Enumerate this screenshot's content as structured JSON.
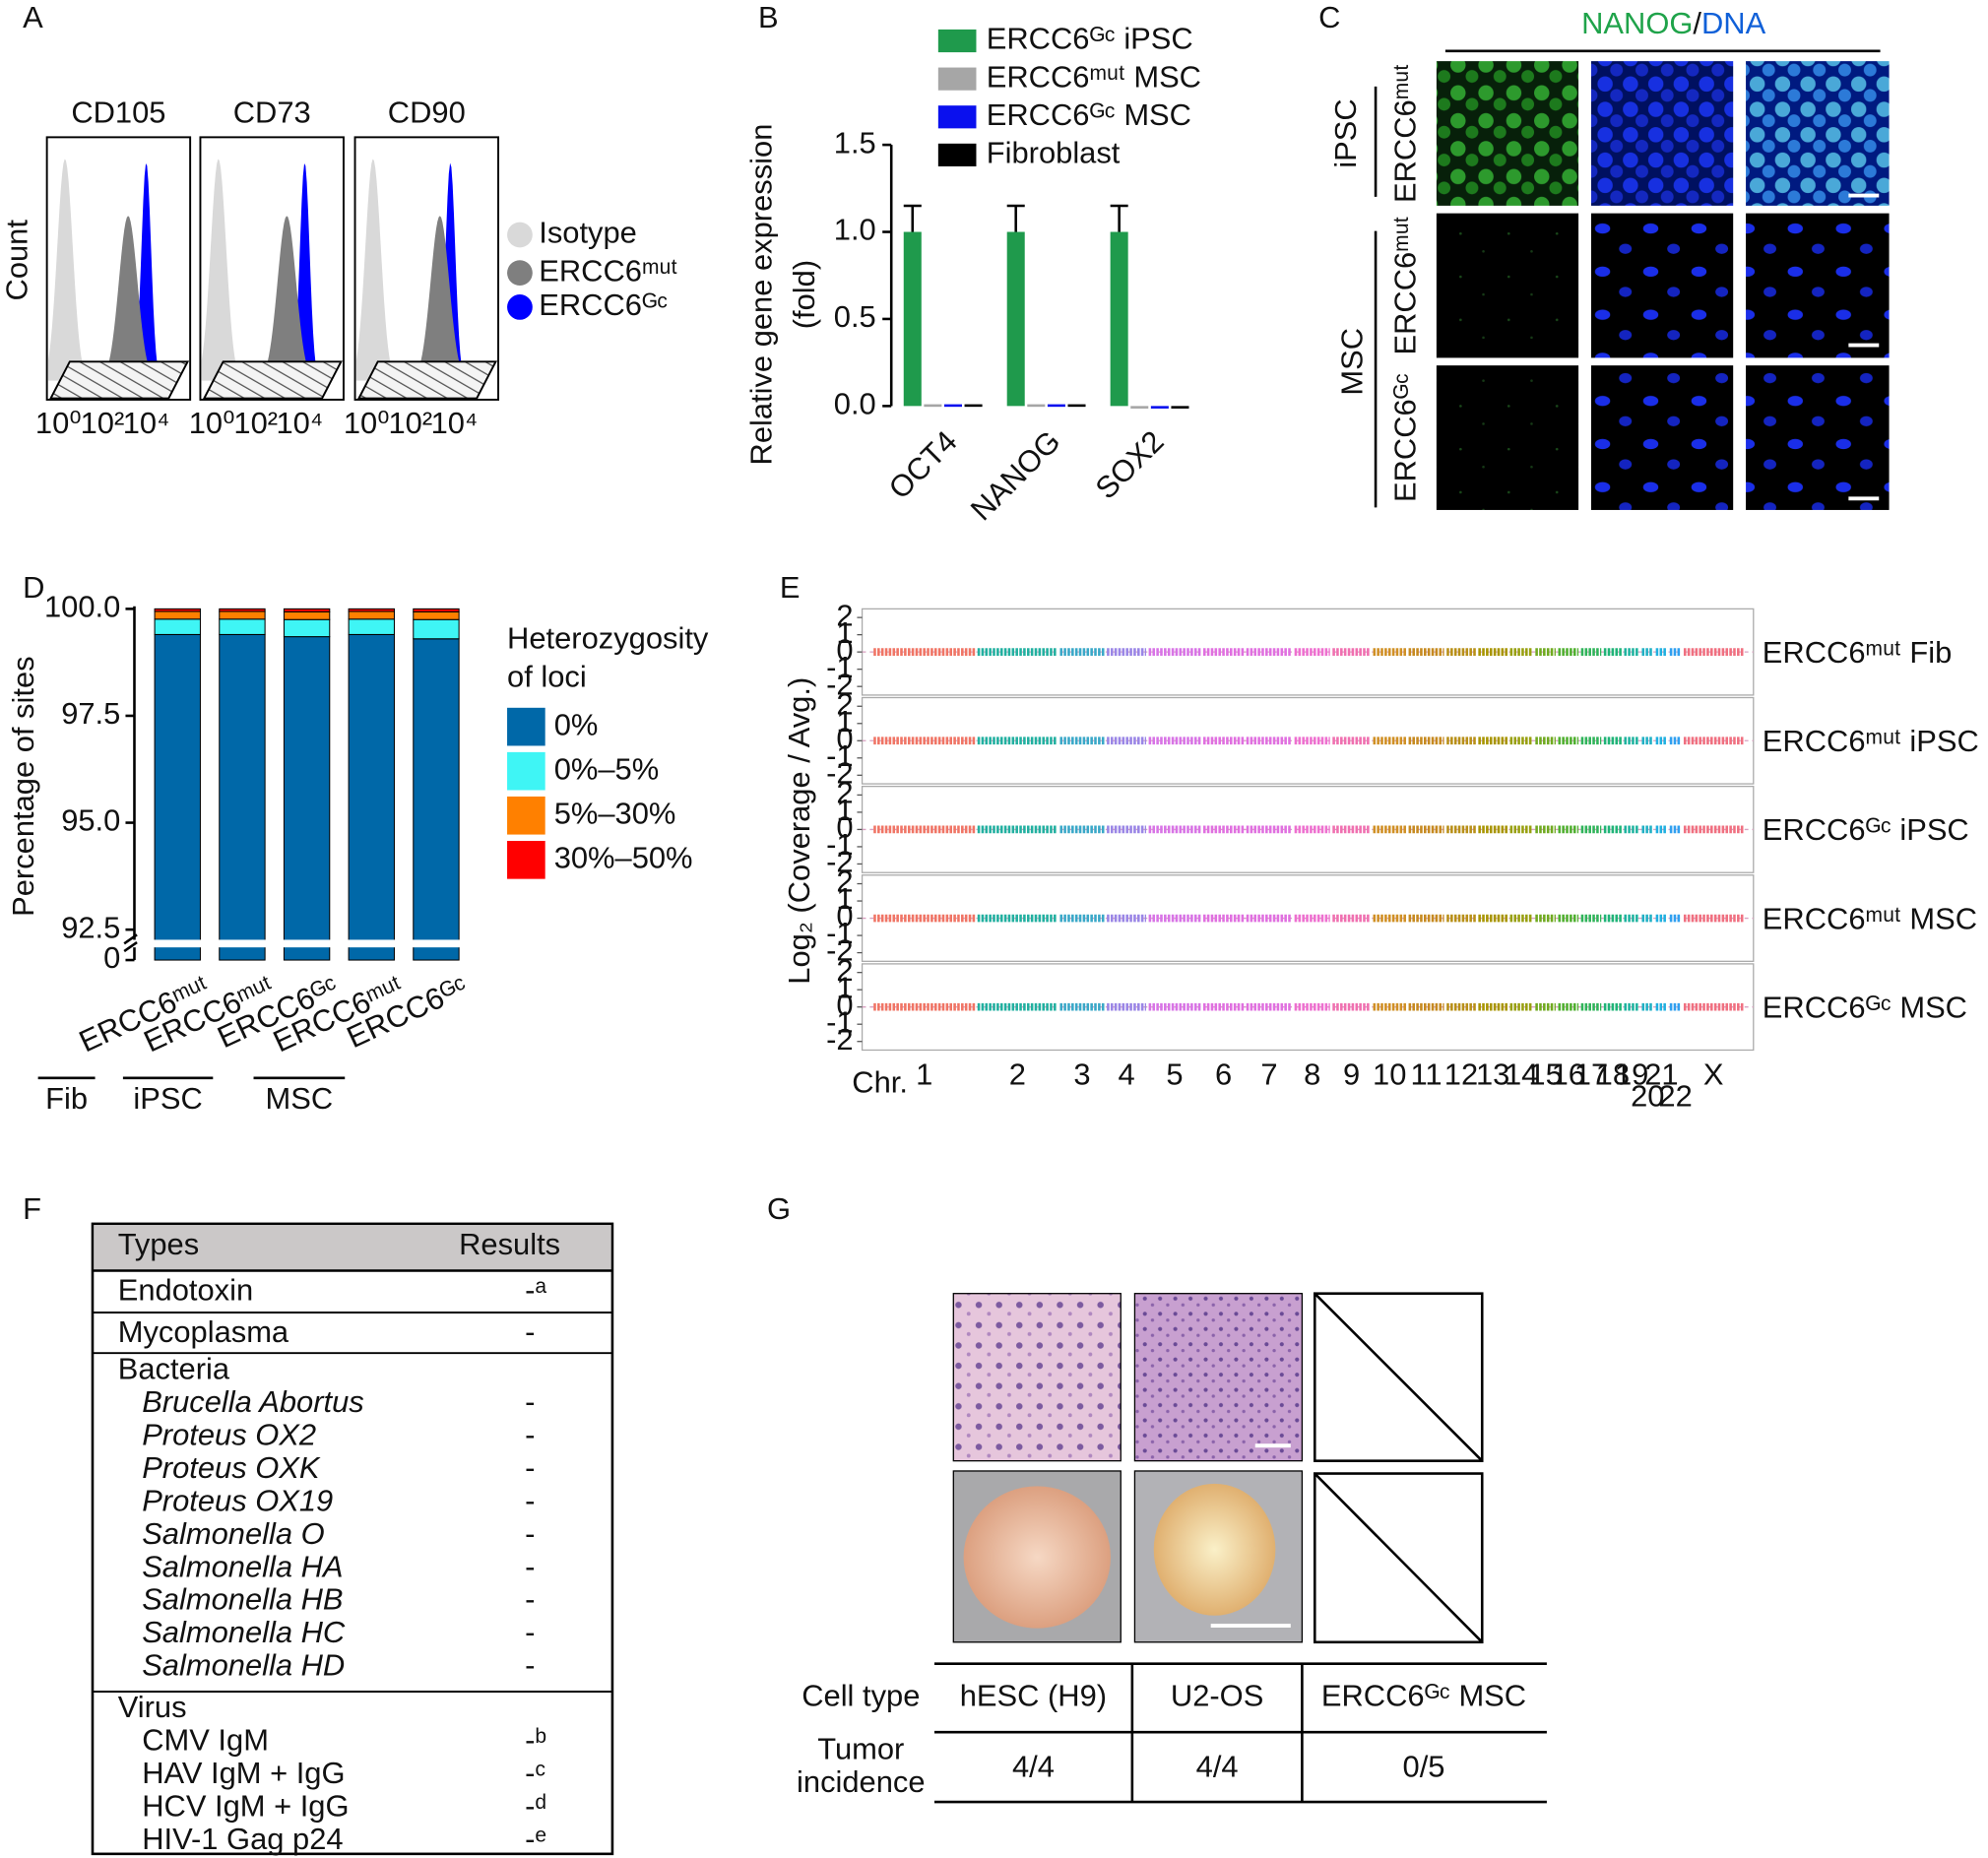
{
  "figure": {
    "panel_labels": [
      "A",
      "B",
      "C",
      "D",
      "E",
      "F",
      "G"
    ]
  },
  "chart_data": [
    {
      "type": "flow-cytometry",
      "ylabel": "Count",
      "panels": [
        "CD105",
        "CD73",
        "CD90"
      ],
      "xscale": "log",
      "xlim": [
        0.3,
        1000000
      ],
      "xticks": [
        {
          "value": 1,
          "label": "10⁰"
        },
        {
          "value": 100,
          "label": "10²"
        },
        {
          "value": 10000,
          "label": "10⁴"
        }
      ],
      "series": [
        {
          "name": "Isotype",
          "color": "#d9d9d9",
          "values": [
            2,
            2,
            2
          ]
        },
        {
          "name": "ERCC6ᵐᵘᵗ",
          "color": "#7f7f7f",
          "values": [
            1500,
            2600,
            2200
          ]
        },
        {
          "name": "ERCC6ᴳᶜ",
          "color": "#0000ff",
          "values": [
            10000,
            17000,
            6600
          ]
        }
      ]
    },
    {
      "type": "bar",
      "ylabel": [
        "Relative gene expression",
        "(fold)"
      ],
      "categories": [
        "OCT4",
        "NANOG",
        "SOX2"
      ],
      "ylim": [
        0,
        1.5
      ],
      "yticks": [
        {
          "value": 0,
          "label": "0.0"
        },
        0.5,
        {
          "value": 1,
          "label": "1.0"
        },
        1.5
      ],
      "series": [
        {
          "name": "ERCC6ᴳᶜ iPSC",
          "color": "#1f9a4c",
          "values": [
            1,
            1,
            1
          ],
          "errors": [
            0.15,
            0.15,
            0.15
          ]
        },
        {
          "name": "ERCC6ᵐᵘᵗ MSC",
          "color": "#a6a6a6",
          "values": [
            0.01,
            0.01,
            0
          ]
        },
        {
          "name": "ERCC6ᴳᶜ MSC",
          "color": "#0a10ee",
          "values": [
            0.01,
            0.01,
            0
          ]
        },
        {
          "name": "Fibroblast",
          "color": "#000000",
          "values": [
            0.01,
            0.01,
            0
          ]
        }
      ]
    },
    {
      "type": "stacked-bar",
      "ylabel": "Percentage of sites",
      "legend_title": [
        "Heterozygosity",
        "of loci"
      ],
      "categories": [
        "ERCC6ᵐᵘᵗ",
        "ERCC6ᵐᵘᵗ",
        "ERCC6ᴳᶜ",
        "ERCC6ᵐᵘᵗ",
        "ERCC6ᴳᶜ"
      ],
      "groups": [
        "Fib",
        "iPSC",
        "MSC"
      ],
      "ylim": [
        0,
        100
      ],
      "ybreak": 92.5,
      "yticks": [
        0,
        92.5,
        {
          "value": 95,
          "label": "95.0"
        },
        97.5,
        {
          "value": 100,
          "label": "100.0"
        }
      ],
      "series": [
        {
          "name": "0%",
          "color": "#0068a8",
          "values": [
            99.4,
            99.4,
            99.35,
            99.4,
            99.3
          ]
        },
        {
          "name": "0%–5%",
          "color": "#3ff5f5",
          "values": [
            0.36,
            0.36,
            0.4,
            0.36,
            0.45
          ]
        },
        {
          "name": "5%–30%",
          "color": "#ff8000",
          "values": [
            0.18,
            0.18,
            0.18,
            0.18,
            0.18
          ]
        },
        {
          "name": "30%–50%",
          "color": "#ff0000",
          "values": [
            0.06,
            0.06,
            0.07,
            0.06,
            0.07
          ]
        }
      ]
    },
    {
      "type": "coverage",
      "ylabel": "Log₂ (Coverage / Avg.)",
      "xlabel": "Chr.",
      "categories": [
        "1",
        "2",
        "3",
        "4",
        "5",
        "6",
        "7",
        "8",
        "9",
        "10",
        "11",
        "12",
        "13",
        "14",
        "15",
        "16",
        "17",
        "18",
        "19",
        "20",
        "21",
        "22",
        "X"
      ],
      "colors": [
        "#f07565",
        "#22b0a0",
        "#3aa8c8",
        "#9a86e6",
        "#d874e6",
        "#e070e0",
        "#e070e0",
        "#ee70d0",
        "#f070b0",
        "#d09025",
        "#c68a20",
        "#b89018",
        "#a89500",
        "#98a010",
        "#70aa20",
        "#50b030",
        "#30b45a",
        "#20b478",
        "#20b4a0",
        "#20b0c4",
        "#20b0e0",
        "#30a0f0",
        "#f07080"
      ],
      "ylim": [
        -2.5,
        2.5
      ],
      "yticks": [
        2,
        1,
        0,
        -1,
        -2
      ],
      "series": [
        {
          "name": "ERCC6ᵐᵘᵗ Fib",
          "values": [
            0,
            0,
            0,
            0,
            0,
            0,
            0,
            0,
            0,
            0,
            0,
            0,
            0,
            0,
            0,
            0,
            0,
            0,
            0,
            0,
            0,
            0,
            0
          ]
        },
        {
          "name": "ERCC6ᵐᵘᵗ iPSC",
          "values": [
            0,
            0,
            0,
            0,
            0,
            0,
            0,
            0,
            0,
            0,
            0,
            0,
            0,
            0,
            0,
            0,
            0,
            0,
            0,
            0,
            0,
            0,
            0
          ]
        },
        {
          "name": "ERCC6ᴳᶜ iPSC",
          "values": [
            0,
            0,
            0,
            0,
            0,
            0,
            0,
            0,
            0,
            0,
            0,
            0,
            0,
            0,
            0,
            0,
            0,
            0,
            0,
            0,
            0,
            0,
            0
          ]
        },
        {
          "name": "ERCC6ᵐᵘᵗ MSC",
          "values": [
            0,
            0,
            0,
            0,
            0,
            0,
            0,
            0,
            0,
            0,
            0,
            0,
            0,
            0,
            0,
            0,
            0,
            0,
            0,
            0,
            0,
            0,
            0
          ]
        },
        {
          "name": "ERCC6ᴳᶜ MSC",
          "values": [
            0,
            0,
            0,
            0,
            0,
            0,
            0,
            0,
            0,
            0,
            0,
            0,
            0,
            0,
            0,
            0,
            0,
            0,
            0,
            0,
            0,
            0,
            0
          ]
        }
      ]
    }
  ],
  "panel_c": {
    "title": [
      "NANOG",
      "/",
      "DNA"
    ],
    "groups": [
      "iPSC",
      "MSC"
    ],
    "row_labels": [
      "ERCC6ᵐᵘᵗ",
      "ERCC6ᵐᵘᵗ",
      "ERCC6ᴳᶜ"
    ]
  },
  "panel_f": {
    "header": [
      "Types",
      "Results"
    ],
    "sections": [
      {
        "rows": [
          [
            "Endotoxin",
            "-ᵃ"
          ]
        ]
      },
      {
        "rows": [
          [
            "Mycoplasma",
            "-"
          ]
        ]
      },
      {
        "title": "Bacteria",
        "rows": [
          [
            "Brucella Abortus",
            "-"
          ],
          [
            "Proteus OX2",
            "-"
          ],
          [
            "Proteus OXK",
            "-"
          ],
          [
            "Proteus OX19",
            "-"
          ],
          [
            "Salmonella O",
            "-"
          ],
          [
            "Salmonella HA",
            "-"
          ],
          [
            "Salmonella HB",
            "-"
          ],
          [
            "Salmonella HC",
            "-"
          ],
          [
            "Salmonella HD",
            "-"
          ]
        ]
      },
      {
        "title": "Virus",
        "rows": [
          [
            "CMV IgM",
            "-ᵇ"
          ],
          [
            "HAV IgM + IgG",
            "-ᶜ"
          ],
          [
            "HCV IgM + IgG",
            "-ᵈ"
          ],
          [
            "HIV-1 Gag p24",
            "-ᵉ"
          ]
        ]
      }
    ]
  },
  "panel_g": {
    "header": "Cell type",
    "columns": [
      "hESC (H9)",
      "U2-OS",
      "ERCC6ᴳᶜ MSC"
    ],
    "row_label": [
      "Tumor",
      "incidence"
    ],
    "values": [
      "4/4",
      "4/4",
      "0/5"
    ]
  }
}
